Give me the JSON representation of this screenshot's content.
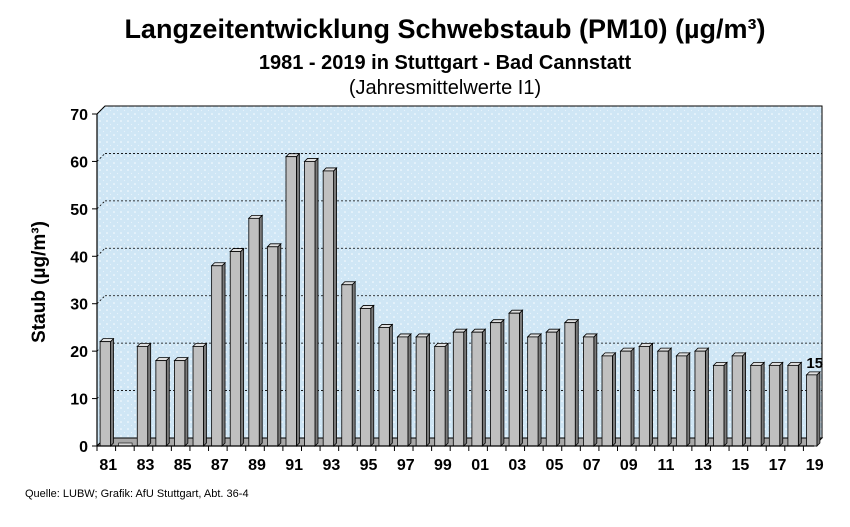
{
  "title": "Langzeitentwicklung Schwebstaub (PM10) (µg/m³)",
  "subtitle": "1981 - 2019 in Stuttgart - Bad Cannstatt",
  "subtitle2": "(Jahresmittelwerte I1)",
  "source": "Quelle: LUBW; Grafik: AfU Stuttgart, Abt. 36-4",
  "chart_data": {
    "type": "bar",
    "title": "Langzeitentwicklung Schwebstaub (PM10) (µg/m³)",
    "ylabel": "Staub (µg/m³)",
    "xlabel": "",
    "ylim": [
      0,
      70
    ],
    "yticks": [
      0,
      10,
      20,
      30,
      40,
      50,
      60,
      70
    ],
    "grid": true,
    "categories": [
      "81",
      "82",
      "83",
      "84",
      "85",
      "86",
      "87",
      "88",
      "89",
      "90",
      "91",
      "92",
      "93",
      "94",
      "95",
      "96",
      "97",
      "98",
      "99",
      "00",
      "01",
      "02",
      "03",
      "04",
      "05",
      "06",
      "07",
      "08",
      "09",
      "10",
      "11",
      "12",
      "13",
      "14",
      "15",
      "16",
      "17",
      "18",
      "19"
    ],
    "category_labels_shown": [
      "81",
      "83",
      "85",
      "87",
      "89",
      "91",
      "93",
      "95",
      "97",
      "99",
      "01",
      "03",
      "05",
      "07",
      "09",
      "11",
      "13",
      "15",
      "17",
      "19"
    ],
    "values": [
      22,
      0,
      21,
      18,
      18,
      21,
      38,
      41,
      48,
      42,
      61,
      60,
      58,
      34,
      29,
      25,
      23,
      23,
      21,
      24,
      24,
      26,
      28,
      23,
      24,
      26,
      23,
      19,
      20,
      21,
      20,
      19,
      20,
      17,
      19,
      17,
      17,
      17,
      15
    ],
    "data_labels": [
      {
        "category": "19",
        "text": "15"
      }
    ],
    "colors": {
      "bar": "#c0c0c0",
      "bar_dark": "#7a7a7a",
      "plot_bg": "#cfe6f5"
    }
  }
}
